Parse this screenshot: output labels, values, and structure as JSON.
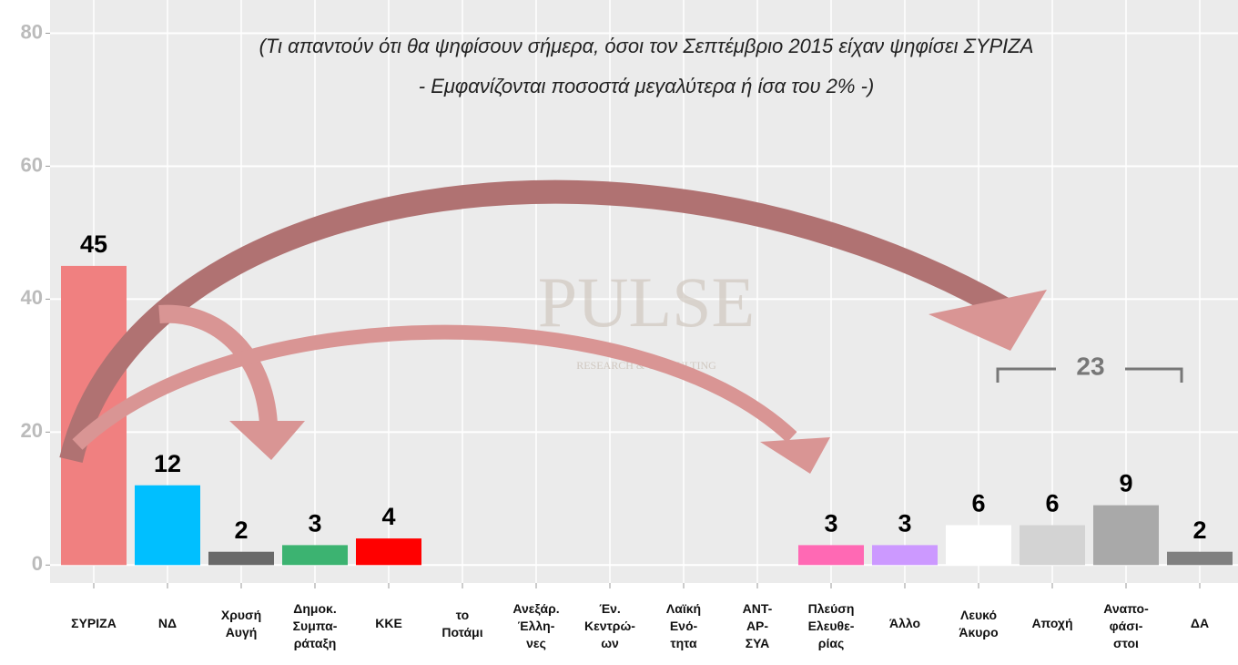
{
  "chart_data": {
    "type": "bar",
    "subtitle": [
      "(Τι απαντούν ότι θα ψηφίσουν σήμερα, όσοι τον Σεπτέμβριο 2015 είχαν ψηφίσει ΣΥΡΙΖΑ",
      "- Εμφανίζονται ποσοστά μεγαλύτερα ή ίσα του 2% -)"
    ],
    "categories": [
      "ΣΥΡΙΖΑ",
      "ΝΔ",
      "Χρυσή\nΑυγή",
      "Δημοκ.\nΣυμπα-\nράταξη",
      "ΚΚΕ",
      "το\nΠοτάμι",
      "Ανεξάρ.\nΈλλη-\nνες",
      "Έν.\nΚεντρώ-\nων",
      "Λαϊκή\nΕνό-\nτητα",
      "ΑΝΤ-\nΑΡ-\nΣΥΑ",
      "Πλεύση\nΕλευθε-\nρίας",
      "Άλλο",
      "Λευκό\nΆκυρο",
      "Αποχή",
      "Αναπο-\nφάσι-\nστοι",
      "ΔΑ"
    ],
    "values": [
      45,
      12,
      2,
      3,
      4,
      null,
      null,
      null,
      null,
      null,
      3,
      3,
      6,
      6,
      9,
      2
    ],
    "colors": [
      "#f08080",
      "#00bfff",
      "#696969",
      "#3cb371",
      "#ff0000",
      null,
      null,
      null,
      null,
      null,
      "#ff69b4",
      "#cc99ff",
      "#ffffff",
      "#d3d3d3",
      "#a9a9a9",
      "#808080"
    ],
    "ylim": [
      -2.7,
      85
    ],
    "yticks": [
      0,
      20,
      40,
      60,
      80
    ],
    "grid": true,
    "annotation": "23",
    "watermark": [
      "PULSE",
      "RESEARCH & CONSULTING"
    ]
  }
}
